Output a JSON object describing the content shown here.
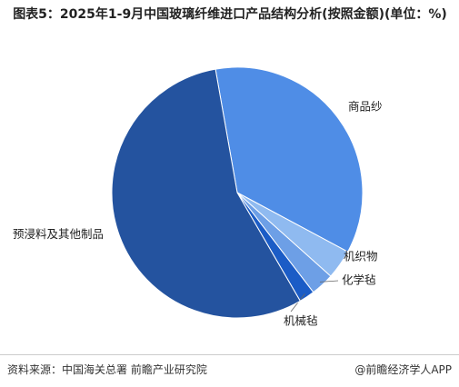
{
  "chart_data": {
    "type": "pie",
    "title": "图表5：2025年1-9月中国玻璃纤维进口产品结构分析(按照金额)(单位：%)",
    "categories": [
      "商品纱",
      "机织物",
      "化学毡",
      "机械毡",
      "预浸料及其他制品"
    ],
    "values": [
      35.6,
      3.8,
      3.0,
      2.0,
      55.6
    ],
    "colors": [
      "#4f8de6",
      "#8fbaf0",
      "#6d9fe6",
      "#1b5cc6",
      "#24539f"
    ]
  },
  "footer": {
    "source": "资料来源：中国海关总署 前瞻产业研究院",
    "brand": "@前瞻经济学人APP"
  }
}
